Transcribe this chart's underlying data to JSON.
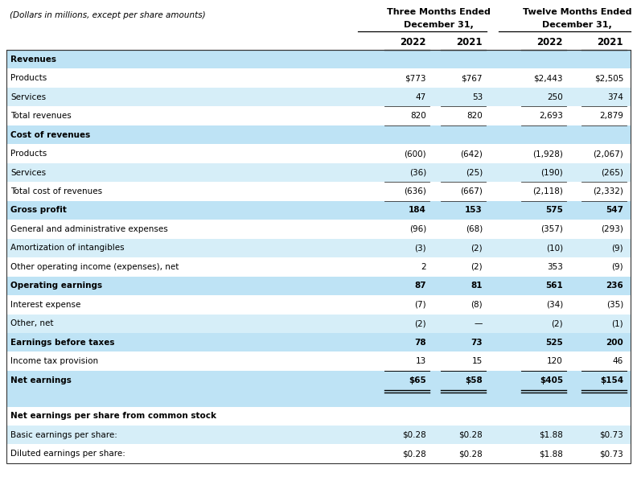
{
  "header_subtitle": "(Dollars in millions, except per share amounts)",
  "col_header1": [
    "Three Months Ended",
    "Twelve Months Ended"
  ],
  "col_header2": [
    "December 31,",
    "December 31,"
  ],
  "col_header3": [
    "2022",
    "2021",
    "2022",
    "2021"
  ],
  "rows": [
    {
      "label": "Revenues",
      "values": [
        "",
        "",
        "",
        ""
      ],
      "style": "section_header",
      "bg": "#bee3f5"
    },
    {
      "label": "Products",
      "values": [
        "$773",
        "$767",
        "$2,443",
        "$2,505"
      ],
      "style": "normal",
      "bg": "#ffffff"
    },
    {
      "label": "Services",
      "values": [
        "47",
        "53",
        "250",
        "374"
      ],
      "style": "normal",
      "bg": "#d6eef8"
    },
    {
      "label": "Total revenues",
      "values": [
        "820",
        "820",
        "2,693",
        "2,879"
      ],
      "style": "underline",
      "bg": "#ffffff"
    },
    {
      "label": "Cost of revenues",
      "values": [
        "",
        "",
        "",
        ""
      ],
      "style": "section_header",
      "bg": "#bee3f5"
    },
    {
      "label": "Products",
      "values": [
        "(600)",
        "(642)",
        "(1,928)",
        "(2,067)"
      ],
      "style": "normal",
      "bg": "#ffffff"
    },
    {
      "label": "Services",
      "values": [
        "(36)",
        "(25)",
        "(190)",
        "(265)"
      ],
      "style": "normal",
      "bg": "#d6eef8"
    },
    {
      "label": "Total cost of revenues",
      "values": [
        "(636)",
        "(667)",
        "(2,118)",
        "(2,332)"
      ],
      "style": "underline",
      "bg": "#ffffff"
    },
    {
      "label": "Gross profit",
      "values": [
        "184",
        "153",
        "575",
        "547"
      ],
      "style": "bold_section",
      "bg": "#bee3f5"
    },
    {
      "label": "General and administrative expenses",
      "values": [
        "(96)",
        "(68)",
        "(357)",
        "(293)"
      ],
      "style": "normal",
      "bg": "#ffffff"
    },
    {
      "label": "Amortization of intangibles",
      "values": [
        "(3)",
        "(2)",
        "(10)",
        "(9)"
      ],
      "style": "normal",
      "bg": "#d6eef8"
    },
    {
      "label": "Other operating income (expenses), net",
      "values": [
        "2",
        "(2)",
        "353",
        "(9)"
      ],
      "style": "normal",
      "bg": "#ffffff"
    },
    {
      "label": "Operating earnings",
      "values": [
        "87",
        "81",
        "561",
        "236"
      ],
      "style": "bold_section",
      "bg": "#bee3f5"
    },
    {
      "label": "Interest expense",
      "values": [
        "(7)",
        "(8)",
        "(34)",
        "(35)"
      ],
      "style": "normal",
      "bg": "#ffffff"
    },
    {
      "label": "Other, net",
      "values": [
        "(2)",
        "—",
        "(2)",
        "(1)"
      ],
      "style": "normal",
      "bg": "#d6eef8"
    },
    {
      "label": "Earnings before taxes",
      "values": [
        "78",
        "73",
        "525",
        "200"
      ],
      "style": "bold_section",
      "bg": "#bee3f5"
    },
    {
      "label": "Income tax provision",
      "values": [
        "13",
        "15",
        "120",
        "46"
      ],
      "style": "normal",
      "bg": "#ffffff"
    },
    {
      "label": "Net earnings",
      "values": [
        "$65",
        "$58",
        "$405",
        "$154"
      ],
      "style": "bold_double_underline",
      "bg": "#bee3f5"
    }
  ],
  "per_share_header": "Net earnings per share from common stock",
  "per_share_rows": [
    {
      "label": "Basic earnings per share:",
      "values": [
        "$0.28",
        "$0.28",
        "$1.88",
        "$0.73"
      ],
      "bg": "#d6eef8"
    },
    {
      "label": "Diluted earnings per share:",
      "values": [
        "$0.28",
        "$0.28",
        "$1.88",
        "$0.73"
      ],
      "bg": "#ffffff"
    }
  ],
  "light_blue": "#bee3f5",
  "alt_blue": "#d6eef8",
  "white": "#ffffff",
  "fig_width": 7.92,
  "fig_height": 5.98,
  "dpi": 100
}
